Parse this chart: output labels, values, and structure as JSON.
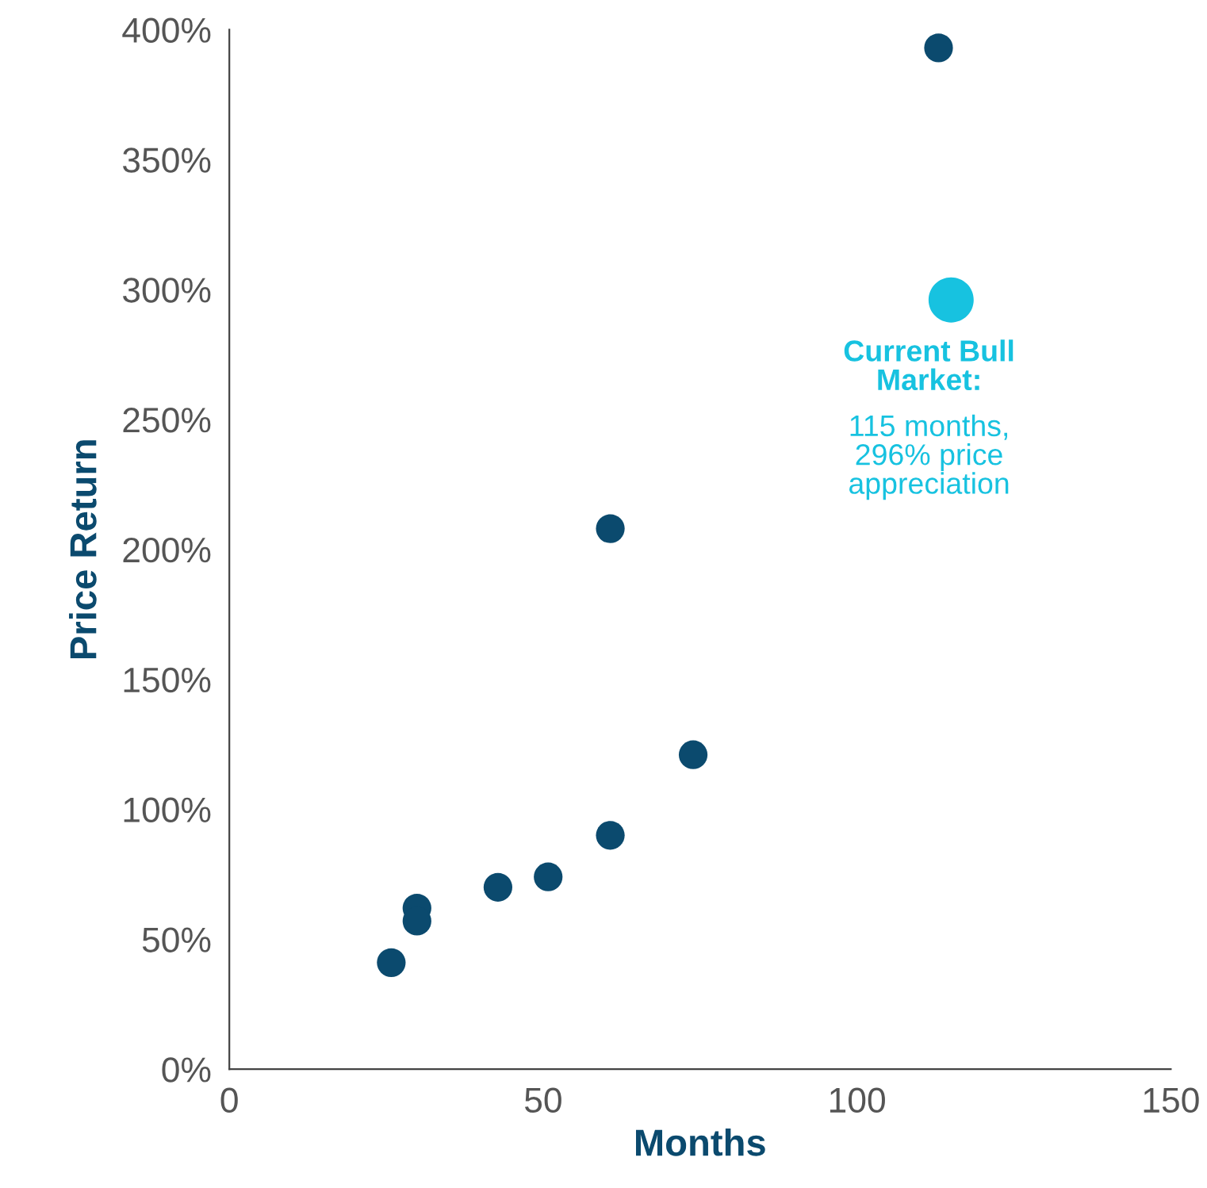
{
  "chart_data": {
    "type": "scatter",
    "xlabel": "Months",
    "ylabel": "Price Return",
    "series": [
      {
        "color": "#0b4a6e",
        "x": [
          113,
          60.7,
          73.9,
          60.7,
          50.8,
          42.8,
          29.9,
          29.9,
          25.8
        ],
        "values": [
          393,
          208,
          121,
          90,
          74,
          70,
          62,
          57,
          41
        ]
      },
      {
        "color": "#17c2e0",
        "x": [
          115
        ],
        "values": [
          296
        ]
      }
    ],
    "xlim": [
      0,
      150
    ],
    "xticks": [
      0,
      50,
      100,
      150
    ],
    "ylim": [
      0,
      400
    ],
    "yticks": [
      {
        "value": 0,
        "label": "0%"
      },
      {
        "value": 50,
        "label": "50%"
      },
      {
        "value": 100,
        "label": "100%"
      },
      {
        "value": 150,
        "label": "150%"
      },
      {
        "value": 200,
        "label": "200%"
      },
      {
        "value": 250,
        "label": "250%"
      },
      {
        "value": 300,
        "label": "300%"
      },
      {
        "value": 350,
        "label": "350%"
      },
      {
        "value": 400,
        "label": "400%"
      }
    ],
    "grid": false,
    "legend": false,
    "marker": "circle",
    "annotations": [
      {
        "text": "Current Bull\nMarket:",
        "x": 115,
        "y": 296
      },
      "115 months,\n296% price\nappreciation"
    ]
  }
}
